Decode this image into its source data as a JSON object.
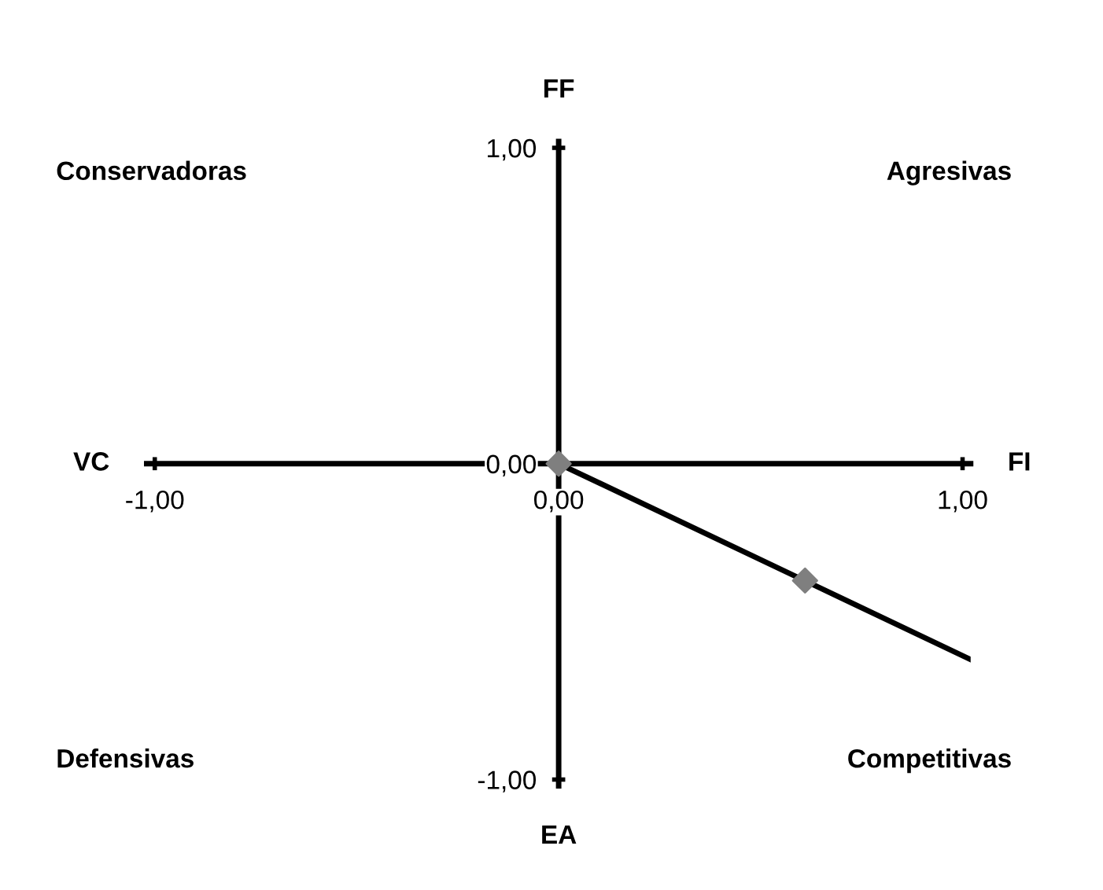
{
  "chart_data": {
    "type": "scatter",
    "series": [
      {
        "type": "line",
        "color": "#000000",
        "x": [
          0,
          1.02
        ],
        "values": [
          0,
          -0.62
        ],
        "marker": "none"
      },
      {
        "color": "#7f7f7f",
        "x": [
          0,
          0.61
        ],
        "values": [
          0,
          -0.37
        ],
        "marker": "diamond"
      }
    ],
    "xlim": [
      -1.02,
      1.02
    ],
    "ylim": [
      -1.02,
      1.02
    ],
    "xticks": [
      {
        "value": -1,
        "label": "-1,00"
      },
      {
        "value": 0,
        "label": "0,00"
      },
      {
        "value": 1,
        "label": "1,00"
      }
    ],
    "yticks": [
      {
        "value": -1,
        "label": "-1,00"
      },
      {
        "value": 0,
        "label": "0,00"
      },
      {
        "value": 1,
        "label": "1,00"
      }
    ],
    "grid": false,
    "legend": false,
    "annotations": [
      "FF",
      "EA",
      "VC",
      "FI",
      "Conservadoras",
      "Agresivas",
      "Defensivas",
      "Competitivas"
    ]
  }
}
